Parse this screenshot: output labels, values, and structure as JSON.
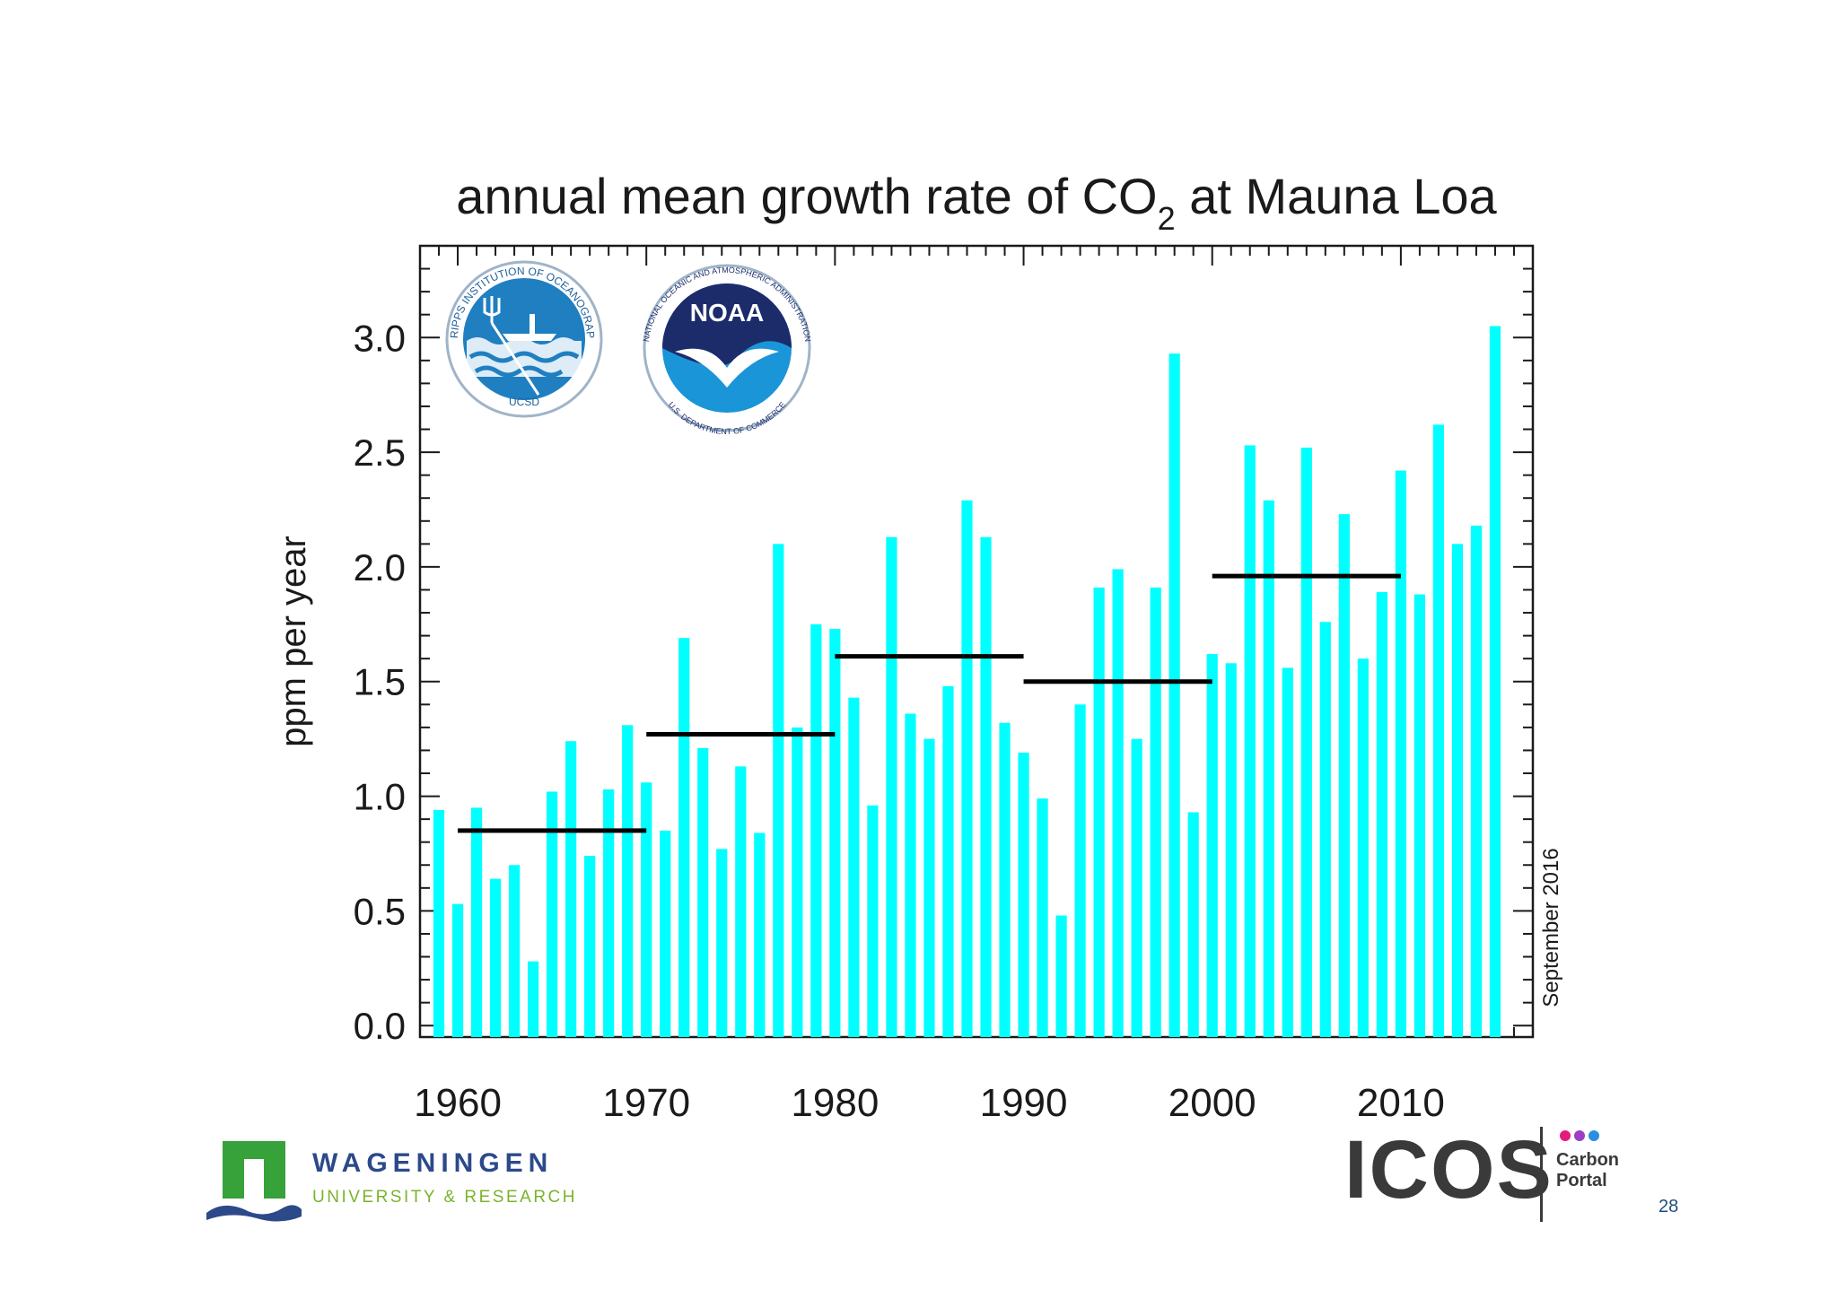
{
  "chart_data": {
    "type": "bar",
    "title": "annual mean growth rate of CO",
    "title_subscript": "2",
    "title_suffix": " at Mauna Loa",
    "xlabel": "",
    "ylabel": "ppm per year",
    "xlim": [
      1958,
      2017
    ],
    "ylim": [
      -0.05,
      3.4
    ],
    "y_ticks": [
      "0.0",
      "0.5",
      "1.0",
      "1.5",
      "2.0",
      "2.5",
      "3.0"
    ],
    "x_ticks": [
      "1960",
      "1970",
      "1980",
      "1990",
      "2000",
      "2010"
    ],
    "bar_color": "#00FFFF",
    "years": [
      1959,
      1960,
      1961,
      1962,
      1963,
      1964,
      1965,
      1966,
      1967,
      1968,
      1969,
      1970,
      1971,
      1972,
      1973,
      1974,
      1975,
      1976,
      1977,
      1978,
      1979,
      1980,
      1981,
      1982,
      1983,
      1984,
      1985,
      1986,
      1987,
      1988,
      1989,
      1990,
      1991,
      1992,
      1993,
      1994,
      1995,
      1996,
      1997,
      1998,
      1999,
      2000,
      2001,
      2002,
      2003,
      2004,
      2005,
      2006,
      2007,
      2008,
      2009,
      2010,
      2011,
      2012,
      2013,
      2014,
      2015
    ],
    "values": [
      0.94,
      0.53,
      0.95,
      0.64,
      0.7,
      0.28,
      1.02,
      1.24,
      0.74,
      1.03,
      1.31,
      1.06,
      0.85,
      1.69,
      1.21,
      0.77,
      1.13,
      0.84,
      2.1,
      1.3,
      1.75,
      1.73,
      1.43,
      0.96,
      2.13,
      1.36,
      1.25,
      1.48,
      2.29,
      2.13,
      1.32,
      1.19,
      0.99,
      0.48,
      1.4,
      1.91,
      1.99,
      1.25,
      1.91,
      2.93,
      0.93,
      1.62,
      1.58,
      2.53,
      2.29,
      1.56,
      2.52,
      1.76,
      2.23,
      1.6,
      1.89,
      2.42,
      1.88,
      2.62,
      2.1,
      2.18,
      3.05
    ],
    "decadal_means": [
      {
        "start": 1960,
        "end": 1970,
        "value": 0.85
      },
      {
        "start": 1970,
        "end": 1980,
        "value": 1.27
      },
      {
        "start": 1980,
        "end": 1990,
        "value": 1.61
      },
      {
        "start": 1990,
        "end": 2000,
        "value": 1.5
      },
      {
        "start": 2000,
        "end": 2010,
        "value": 1.96
      }
    ],
    "date_annotation": "September 2016"
  },
  "logos": {
    "scripps": {
      "top_text": "SCRIPPS INSTITUTION OF OCEANOGRAPHY",
      "bottom_text": "UCSD"
    },
    "noaa": {
      "center_text": "NOAA",
      "top_text": "NATIONAL OCEANIC AND ATMOSPHERIC ADMINISTRATION",
      "bottom_text": "U.S. DEPARTMENT OF COMMERCE"
    },
    "wageningen": {
      "name": "WAGENINGEN",
      "subtitle": "UNIVERSITY & RESEARCH"
    },
    "icos": {
      "name": "ICOS",
      "subtitle": "Carbon Portal",
      "dot_colors": [
        "#e6197d",
        "#9b3fc4",
        "#2a8fe0"
      ]
    }
  },
  "page_number": "28"
}
